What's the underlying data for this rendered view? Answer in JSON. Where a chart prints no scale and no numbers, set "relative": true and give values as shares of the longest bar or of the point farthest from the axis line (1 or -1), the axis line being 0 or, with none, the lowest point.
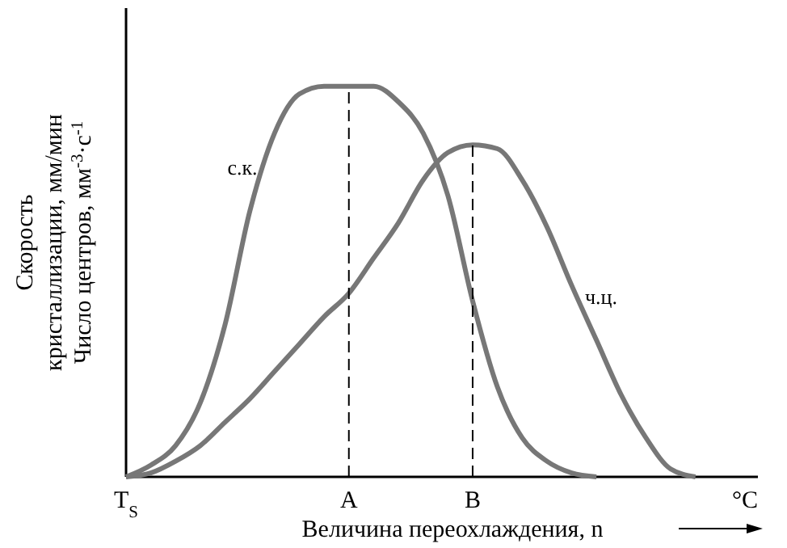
{
  "chart_data": {
    "type": "line",
    "relative": true,
    "xlabel": "Величина переохлаждения, n",
    "ylabel": "Скорость\nкристаллизации, мм/мин\nЧисло центров, мм$^{-3}$·с$^{-1}$",
    "categories": [
      "T$_{S}$",
      null,
      null,
      null,
      null,
      null,
      null,
      null,
      null,
      "A",
      null,
      null,
      null,
      null,
      "B",
      null,
      null,
      null,
      null,
      null,
      null,
      null,
      null,
      null,
      null,
      "°C"
    ],
    "series": [
      {
        "color": "#777777",
        "values": [
          0,
          0.03,
          0.08,
          0.19,
          0.39,
          0.68,
          0.88,
          0.98,
          1,
          1,
          1,
          0.96,
          0.88,
          0.72,
          0.45,
          0.23,
          0.1,
          0.04,
          0.01,
          0,
          null,
          null,
          null,
          null,
          null,
          null
        ]
      },
      {
        "color": "#777777",
        "values": [
          0,
          0.01,
          0.04,
          0.08,
          0.14,
          0.2,
          0.27,
          0.34,
          0.41,
          0.47,
          0.56,
          0.65,
          0.76,
          0.83,
          0.85,
          0.84,
          0.76,
          0.64,
          0.49,
          0.35,
          0.21,
          0.1,
          0.02,
          0,
          null,
          null
        ]
      }
    ],
    "annotations": [
      "с.к.",
      "ч.ц."
    ],
    "ref_lines": [
      {
        "axis": "x",
        "value": "A",
        "line_style": "dashed",
        "color": "#000000"
      },
      {
        "axis": "x",
        "value": "B",
        "line_style": "dashed",
        "color": "#000000"
      }
    ],
    "line_style": "solid"
  }
}
